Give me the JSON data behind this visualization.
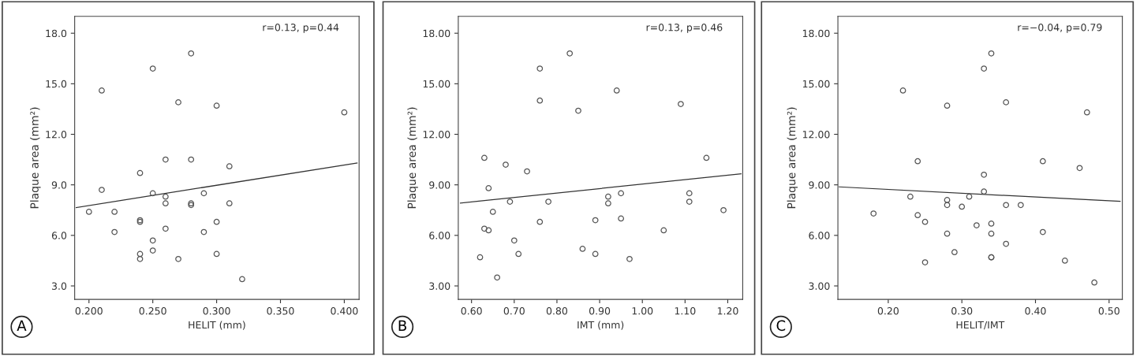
{
  "chart_data": [
    {
      "type": "scatter",
      "xlabel": "HELIT (mm)",
      "ylabel": "Plaque area (mm²)",
      "annotations": [
        "r=0.13, p=0.44",
        "A"
      ],
      "xlim": [
        0.1888,
        0.4116
      ],
      "ylim": [
        2.2,
        19.0
      ],
      "xticks": [
        {
          "value": 0.2,
          "label": "0.200"
        },
        {
          "value": 0.25,
          "label": "0.250"
        },
        {
          "value": 0.3,
          "label": "0.300"
        },
        {
          "value": 0.35,
          "label": "0.350"
        },
        {
          "value": 0.4,
          "label": "0.400"
        }
      ],
      "yticks": [
        {
          "value": 3,
          "label": "3.0"
        },
        {
          "value": 6,
          "label": "6.0"
        },
        {
          "value": 9,
          "label": "9.0"
        },
        {
          "value": 12,
          "label": "12.0"
        },
        {
          "value": 15,
          "label": "15.0"
        },
        {
          "value": 18,
          "label": "18.0"
        }
      ],
      "series": [
        {
          "marker": "circle",
          "color": "#555555",
          "x": [
            0.2,
            0.21,
            0.21,
            0.22,
            0.22,
            0.24,
            0.24,
            0.24,
            0.24,
            0.24,
            0.25,
            0.25,
            0.25,
            0.25,
            0.26,
            0.26,
            0.26,
            0.26,
            0.27,
            0.27,
            0.28,
            0.28,
            0.28,
            0.28,
            0.29,
            0.29,
            0.3,
            0.3,
            0.3,
            0.31,
            0.31,
            0.32,
            0.4
          ],
          "values": [
            7.4,
            14.6,
            8.7,
            7.4,
            6.2,
            9.7,
            6.9,
            6.8,
            4.9,
            4.6,
            15.9,
            8.5,
            5.7,
            5.1,
            10.5,
            8.3,
            7.9,
            6.4,
            13.9,
            4.6,
            16.8,
            10.5,
            7.9,
            7.8,
            8.5,
            6.2,
            13.7,
            6.8,
            4.9,
            10.1,
            7.9,
            3.4,
            13.3
          ]
        },
        {
          "type": "line",
          "color": "#333333",
          "x": [
            0.19,
            0.41
          ],
          "values": [
            7.65,
            10.3
          ]
        }
      ]
    },
    {
      "type": "scatter",
      "xlabel": "IMT (mm)",
      "ylabel": "Plaque area (mm²)",
      "annotations": [
        "r=0.13, p=0.46",
        "B"
      ],
      "xlim": [
        0.569,
        1.235
      ],
      "ylim": [
        2.2,
        19.0
      ],
      "xticks": [
        {
          "value": 0.6,
          "label": "0.60"
        },
        {
          "value": 0.7,
          "label": "0.70"
        },
        {
          "value": 0.8,
          "label": "0.80"
        },
        {
          "value": 0.9,
          "label": "0.90"
        },
        {
          "value": 1.0,
          "label": "1.00"
        },
        {
          "value": 1.1,
          "label": "1.10"
        },
        {
          "value": 1.2,
          "label": "1.20"
        }
      ],
      "yticks": [
        {
          "value": 3,
          "label": "3.00"
        },
        {
          "value": 6,
          "label": "6.00"
        },
        {
          "value": 9,
          "label": "9.00"
        },
        {
          "value": 12,
          "label": "12.00"
        },
        {
          "value": 15,
          "label": "15.00"
        },
        {
          "value": 18,
          "label": "18.00"
        }
      ],
      "series": [
        {
          "marker": "circle",
          "color": "#555555",
          "x": [
            0.62,
            0.63,
            0.63,
            0.64,
            0.64,
            0.65,
            0.66,
            0.68,
            0.69,
            0.7,
            0.71,
            0.73,
            0.76,
            0.76,
            0.76,
            0.78,
            0.83,
            0.85,
            0.86,
            0.89,
            0.89,
            0.92,
            0.92,
            0.94,
            0.95,
            0.95,
            0.97,
            1.05,
            1.09,
            1.11,
            1.11,
            1.15,
            1.19
          ],
          "values": [
            4.7,
            10.6,
            6.4,
            8.8,
            6.3,
            7.4,
            3.5,
            10.2,
            8.0,
            5.7,
            4.9,
            9.8,
            15.9,
            14.0,
            6.8,
            8.0,
            16.8,
            13.4,
            5.2,
            6.9,
            4.9,
            8.3,
            7.9,
            14.6,
            8.5,
            7.0,
            4.6,
            6.3,
            13.8,
            8.5,
            8.0,
            10.6,
            7.5
          ]
        },
        {
          "type": "line",
          "color": "#333333",
          "x": [
            0.574,
            1.231
          ],
          "values": [
            7.92,
            9.65
          ]
        }
      ]
    },
    {
      "type": "scatter",
      "xlabel": "HELIT/IMT",
      "ylabel": "Plaque area (mm²)",
      "annotations": [
        "r=−0.04, p=0.79",
        "C"
      ],
      "xlim": [
        0.1316,
        0.518
      ],
      "ylim": [
        2.2,
        19.0
      ],
      "xticks": [
        {
          "value": 0.2,
          "label": "0.20"
        },
        {
          "value": 0.3,
          "label": "0.30"
        },
        {
          "value": 0.4,
          "label": "0.40"
        },
        {
          "value": 0.5,
          "label": "0.50"
        }
      ],
      "yticks": [
        {
          "value": 3,
          "label": "3.00"
        },
        {
          "value": 6,
          "label": "6.00"
        },
        {
          "value": 9,
          "label": "9.00"
        },
        {
          "value": 12,
          "label": "12.00"
        },
        {
          "value": 15,
          "label": "15.00"
        },
        {
          "value": 18,
          "label": "18.00"
        }
      ],
      "series": [
        {
          "marker": "circle",
          "color": "#555555",
          "x": [
            0.18,
            0.22,
            0.23,
            0.24,
            0.24,
            0.25,
            0.25,
            0.28,
            0.28,
            0.28,
            0.28,
            0.29,
            0.3,
            0.31,
            0.32,
            0.33,
            0.33,
            0.33,
            0.34,
            0.34,
            0.34,
            0.34,
            0.34,
            0.36,
            0.36,
            0.36,
            0.38,
            0.41,
            0.41,
            0.44,
            0.46,
            0.47,
            0.48
          ],
          "values": [
            7.3,
            14.6,
            8.3,
            10.4,
            7.2,
            6.8,
            4.4,
            13.7,
            8.1,
            7.8,
            6.1,
            5.0,
            7.7,
            8.3,
            6.6,
            15.9,
            9.6,
            8.6,
            16.8,
            6.7,
            6.1,
            4.7,
            4.7,
            13.9,
            7.8,
            5.5,
            7.8,
            10.4,
            6.2,
            4.5,
            10.0,
            13.3,
            3.2
          ]
        },
        {
          "type": "line",
          "color": "#333333",
          "x": [
            0.1334,
            0.515
          ],
          "values": [
            8.88,
            8.02
          ]
        }
      ]
    }
  ]
}
